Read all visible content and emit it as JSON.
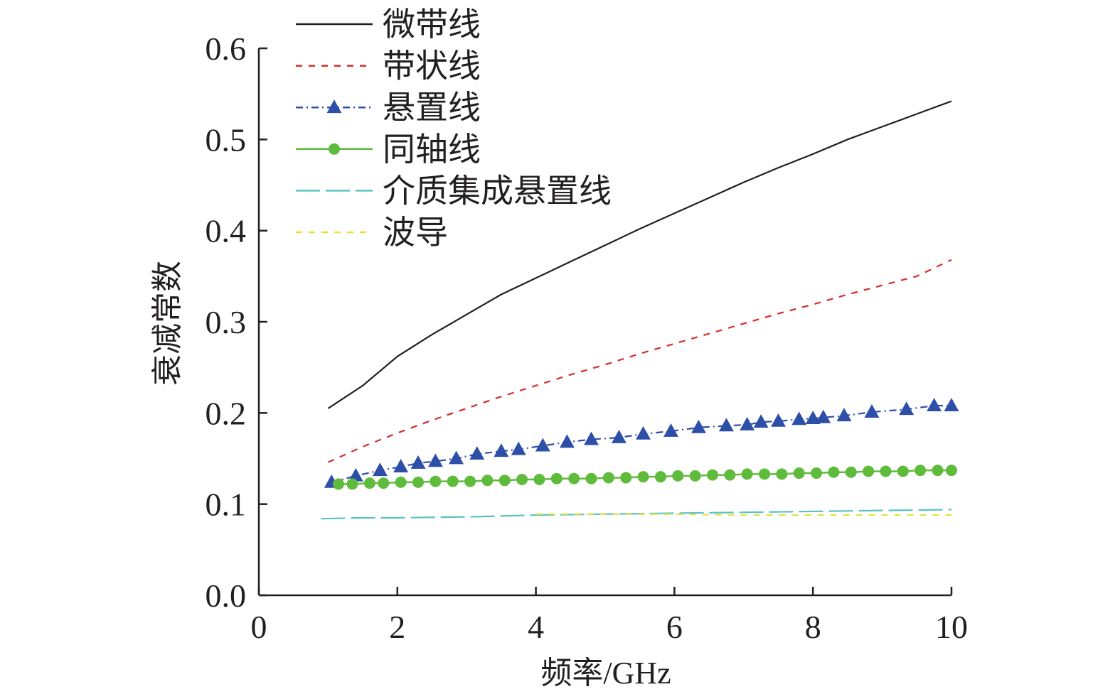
{
  "chart_data": {
    "type": "line",
    "title": "",
    "xlabel": "频率/GHz",
    "ylabel": "衰减常数",
    "xlim": [
      0,
      10
    ],
    "ylim": [
      0,
      0.6
    ],
    "xticks": [
      0,
      2,
      4,
      6,
      8,
      10
    ],
    "yticks": [
      0.0,
      0.1,
      0.2,
      0.3,
      0.4,
      0.5,
      0.6
    ],
    "xtick_labels": [
      "0",
      "2",
      "4",
      "6",
      "8",
      "10"
    ],
    "ytick_labels": [
      "0.0",
      "0.1",
      "0.2",
      "0.3",
      "0.4",
      "0.5",
      "0.6"
    ],
    "grid": false,
    "legend_position": "top-left",
    "series": [
      {
        "name": "微带线",
        "color": "#231f20",
        "style": "solid",
        "marker": "none",
        "x": [
          1.0,
          1.5,
          2.0,
          2.5,
          3.0,
          3.5,
          4.0,
          4.5,
          5.0,
          5.5,
          6.0,
          6.5,
          7.0,
          7.5,
          8.0,
          8.5,
          9.0,
          9.5,
          10.0
        ],
        "y": [
          0.205,
          0.23,
          0.262,
          0.286,
          0.308,
          0.33,
          0.348,
          0.366,
          0.384,
          0.402,
          0.419,
          0.436,
          0.453,
          0.469,
          0.484,
          0.5,
          0.514,
          0.528,
          0.542
        ]
      },
      {
        "name": "带状线",
        "color": "#d72b2b",
        "style": "dashed",
        "marker": "none",
        "x": [
          1.0,
          1.5,
          2.0,
          2.5,
          3.0,
          3.5,
          4.0,
          4.5,
          5.0,
          5.5,
          6.0,
          6.5,
          7.0,
          7.5,
          8.0,
          8.5,
          9.0,
          9.5,
          10.0
        ],
        "y": [
          0.146,
          0.163,
          0.178,
          0.192,
          0.205,
          0.218,
          0.23,
          0.242,
          0.253,
          0.265,
          0.276,
          0.287,
          0.298,
          0.309,
          0.319,
          0.33,
          0.34,
          0.35,
          0.368
        ]
      },
      {
        "name": "悬置线",
        "color": "#2e4fa8",
        "style": "dashdot",
        "marker": "triangle",
        "x": [
          1.05,
          1.4,
          1.75,
          2.05,
          2.3,
          2.55,
          2.85,
          3.15,
          3.5,
          3.75,
          4.1,
          4.45,
          4.8,
          5.2,
          5.55,
          5.95,
          6.35,
          6.75,
          7.05,
          7.25,
          7.5,
          7.8,
          8.0,
          8.15,
          8.45,
          8.85,
          9.35,
          9.75,
          10.0
        ],
        "y": [
          0.124,
          0.131,
          0.137,
          0.141,
          0.145,
          0.147,
          0.15,
          0.155,
          0.158,
          0.16,
          0.164,
          0.168,
          0.171,
          0.173,
          0.177,
          0.18,
          0.184,
          0.186,
          0.187,
          0.19,
          0.191,
          0.193,
          0.194,
          0.195,
          0.197,
          0.201,
          0.204,
          0.208,
          0.208
        ]
      },
      {
        "name": "同轴线",
        "color": "#5fbb3b",
        "style": "solid",
        "marker": "circle",
        "x": [
          1.15,
          1.35,
          1.6,
          1.8,
          2.05,
          2.3,
          2.55,
          2.8,
          3.05,
          3.3,
          3.55,
          3.8,
          4.05,
          4.3,
          4.55,
          4.8,
          5.05,
          5.3,
          5.55,
          5.8,
          6.05,
          6.3,
          6.55,
          6.8,
          7.05,
          7.3,
          7.55,
          7.8,
          8.05,
          8.3,
          8.55,
          8.8,
          9.05,
          9.3,
          9.55,
          9.8,
          10.0
        ],
        "y": [
          0.122,
          0.122,
          0.123,
          0.123,
          0.124,
          0.124,
          0.125,
          0.125,
          0.125,
          0.126,
          0.126,
          0.127,
          0.127,
          0.128,
          0.128,
          0.128,
          0.129,
          0.129,
          0.13,
          0.13,
          0.131,
          0.131,
          0.132,
          0.132,
          0.133,
          0.133,
          0.133,
          0.134,
          0.134,
          0.135,
          0.135,
          0.136,
          0.136,
          0.136,
          0.137,
          0.137,
          0.137
        ]
      },
      {
        "name": "介质集成悬置线",
        "color": "#5bc2c3",
        "style": "longdash",
        "marker": "none",
        "x": [
          0.9,
          1.5,
          2.0,
          3.0,
          4.0,
          5.0,
          6.0,
          7.0,
          8.0,
          9.0,
          10.0
        ],
        "y": [
          0.084,
          0.085,
          0.085,
          0.086,
          0.088,
          0.089,
          0.09,
          0.091,
          0.092,
          0.093,
          0.094
        ]
      },
      {
        "name": "波导",
        "color": "#e0e23a",
        "style": "dashed",
        "marker": "none",
        "x": [
          4.0,
          5.0,
          6.0,
          7.0,
          8.0,
          9.0,
          10.0
        ],
        "y": [
          0.089,
          0.089,
          0.089,
          0.088,
          0.088,
          0.088,
          0.088
        ]
      }
    ]
  }
}
